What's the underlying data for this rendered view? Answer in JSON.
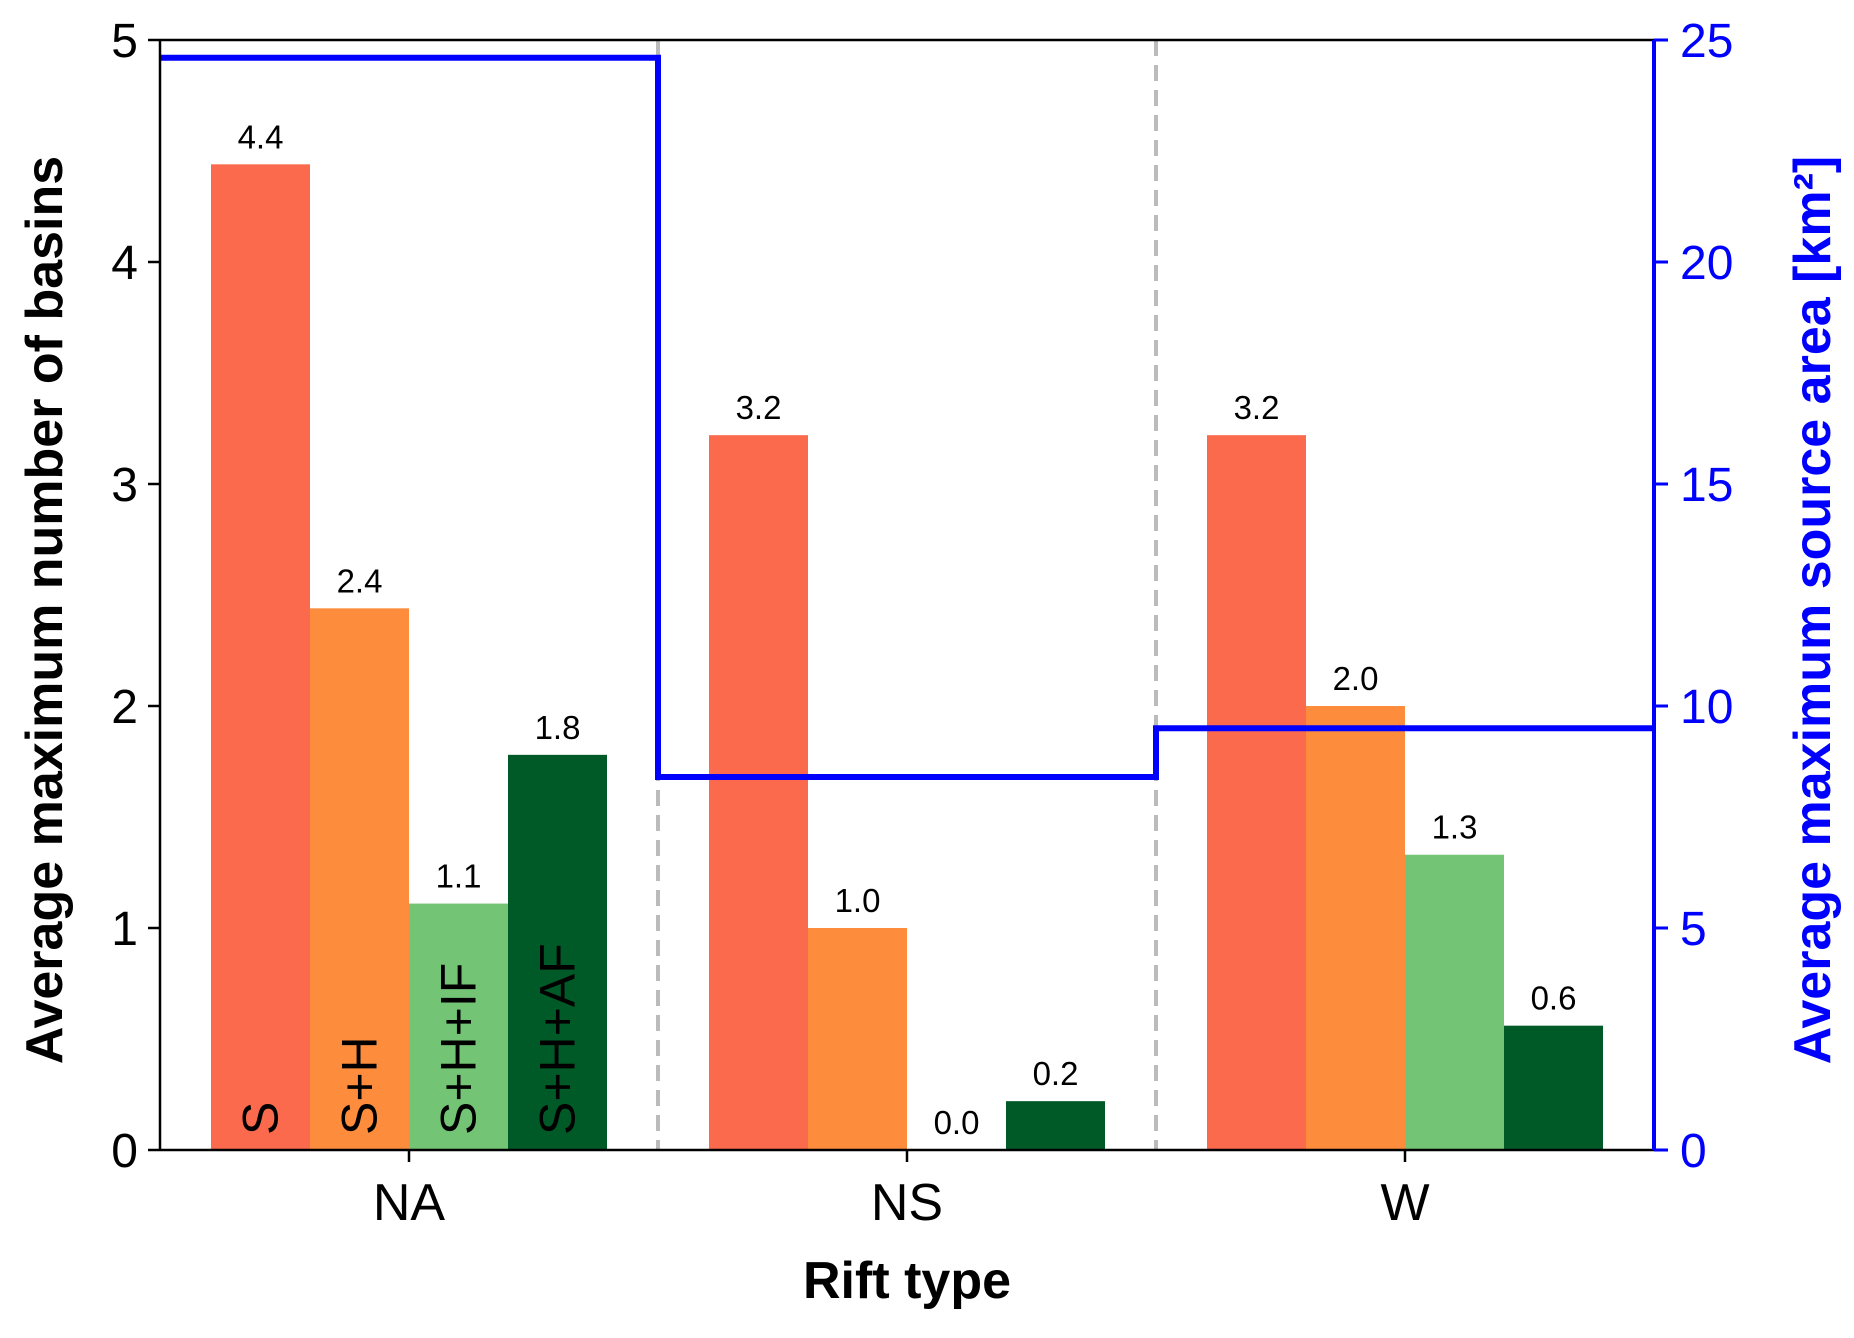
{
  "chart_data": {
    "type": "bar",
    "categories": [
      "NA",
      "NS",
      "W"
    ],
    "series": [
      {
        "name": "S",
        "color": "#fc6a4d",
        "values": [
          4.44,
          3.22,
          3.22
        ],
        "labels": [
          "4.4",
          "3.2",
          "3.2"
        ]
      },
      {
        "name": "S+H",
        "color": "#fd8d3c",
        "values": [
          2.44,
          1.0,
          2.0
        ],
        "labels": [
          "2.4",
          "1.0",
          "2.0"
        ]
      },
      {
        "name": "S+H+IF",
        "color": "#74c476",
        "values": [
          1.11,
          0.0,
          1.33
        ],
        "labels": [
          "1.1",
          "0.0",
          "1.3"
        ]
      },
      {
        "name": "S+H+AF",
        "color": "#005a27",
        "values": [
          1.78,
          0.22,
          0.56
        ],
        "labels": [
          "1.8",
          "0.2",
          "0.6"
        ]
      }
    ],
    "bar_labels_in_group": "NA",
    "secondary_series": {
      "type": "step",
      "color": "#0000ff",
      "values": [
        24.6,
        8.4,
        9.5
      ]
    },
    "xlabel": "Rift type",
    "ylabel": "Average maximum number of basins",
    "y2label": "Average maximum source area [km²]",
    "ylim": [
      0,
      5
    ],
    "y2lim": [
      0,
      25
    ],
    "yticks": [
      0,
      1,
      2,
      3,
      4,
      5
    ],
    "y2ticks": [
      0,
      5,
      10,
      15,
      20,
      25
    ],
    "separators": {
      "style": "dashed",
      "color": "#bbbbbb"
    },
    "grid": false,
    "legend": "none"
  }
}
